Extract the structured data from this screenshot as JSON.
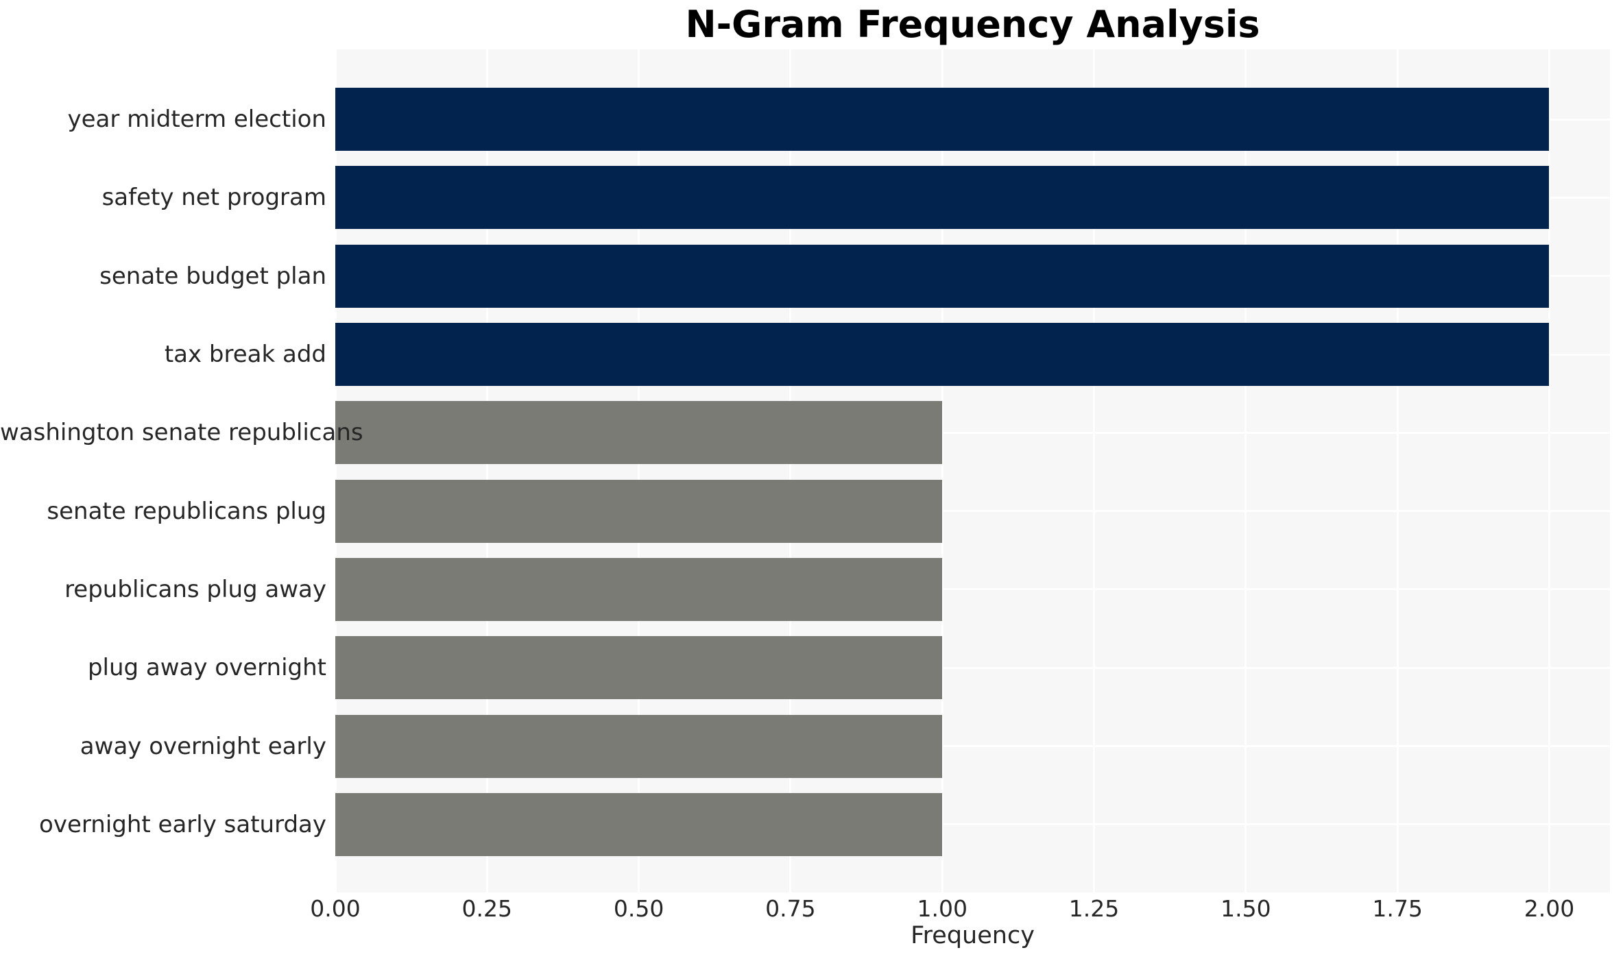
{
  "chart_data": {
    "type": "bar",
    "orientation": "horizontal",
    "title": "N-Gram Frequency Analysis",
    "xlabel": "Frequency",
    "ylabel": "",
    "categories": [
      "year midterm election",
      "safety net program",
      "senate budget plan",
      "tax break add",
      "washington senate republicans",
      "senate republicans plug",
      "republicans plug away",
      "plug away overnight",
      "away overnight early",
      "overnight early saturday"
    ],
    "values": [
      2,
      2,
      2,
      2,
      1,
      1,
      1,
      1,
      1,
      1
    ],
    "bar_colors": [
      "#02234d",
      "#02234d",
      "#02234d",
      "#02234d",
      "#7b7b76",
      "#7b7b76",
      "#7b7b76",
      "#7b7b76",
      "#7b7b76",
      "#7b7b76"
    ],
    "xlim": [
      0,
      2.1
    ],
    "xtick_values": [
      0,
      0.25,
      0.5,
      0.75,
      1.0,
      1.25,
      1.5,
      1.75,
      2.0
    ],
    "xtick_labels": [
      "0.00",
      "0.25",
      "0.50",
      "0.75",
      "1.00",
      "1.25",
      "1.50",
      "1.75",
      "2.00"
    ],
    "grid": true,
    "legend": null,
    "colors": {
      "plot_background": "#f7f7f7",
      "gridline": "#ffffff",
      "tick_text": "#262626",
      "title_text": "#000000",
      "high_value_bar": "#02234d",
      "low_value_bar": "#7b7b76"
    }
  }
}
